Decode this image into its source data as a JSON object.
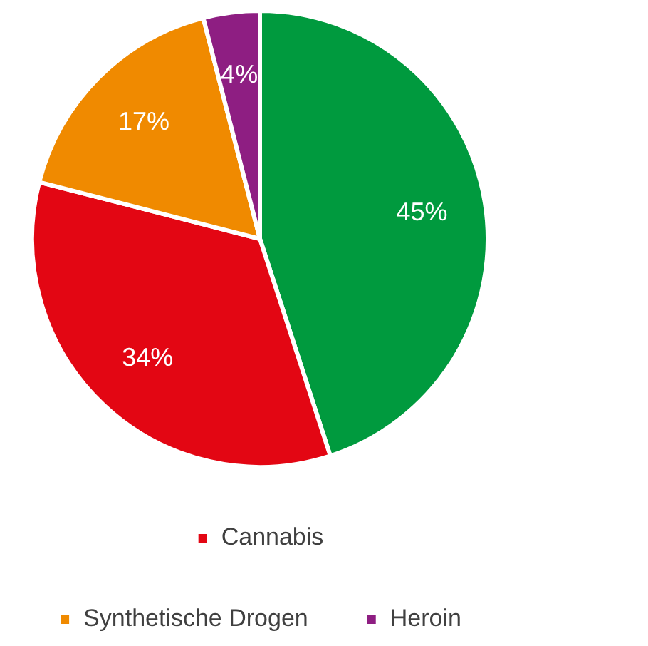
{
  "chart_data": {
    "type": "pie",
    "categories": [
      null,
      "Cannabis",
      "Synthetische Drogen",
      "Heroin"
    ],
    "values": [
      45,
      34,
      17,
      4
    ],
    "colors": [
      "#009a3e",
      "#e30613",
      "#f08a00",
      "#8e1e82"
    ],
    "value_labels": [
      "45%",
      "34%",
      "17%",
      "4%"
    ],
    "legend": "bottom"
  }
}
